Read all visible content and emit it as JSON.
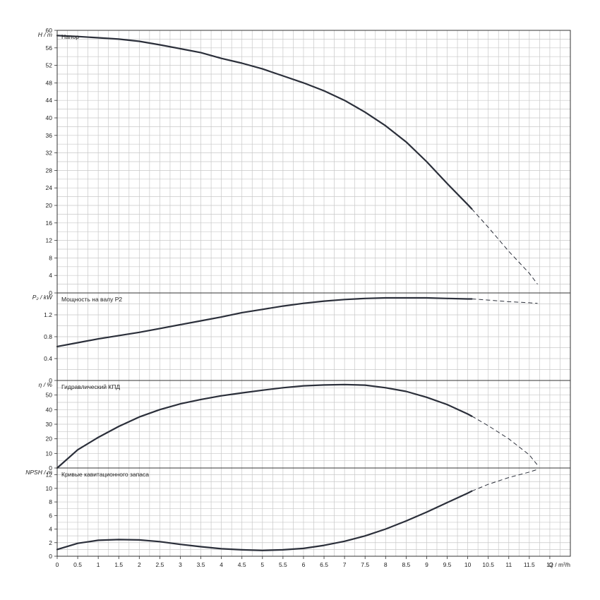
{
  "colors": {
    "curve": "#2b2f3a",
    "grid": "#c8c8c8",
    "frame": "#333333",
    "background": "#ffffff"
  },
  "chart_data": {
    "type": "line",
    "shared_x": {
      "label": "Q / m³/h",
      "range": [
        0,
        12.5
      ],
      "ticks": [
        "0",
        "0.5",
        "1",
        "1.5",
        "2",
        "2.5",
        "3",
        "3.5",
        "4",
        "4.5",
        "5",
        "5.5",
        "6",
        "6.5",
        "7",
        "7.5",
        "8",
        "8.5",
        "9",
        "9.5",
        "10",
        "10.5",
        "11",
        "11.5",
        "12"
      ],
      "grid": true
    },
    "panels": [
      {
        "id": "head",
        "title": "Напор",
        "ylabel": "H / m",
        "ylim": [
          0,
          60
        ],
        "yticks": [
          "0",
          "4",
          "8",
          "12",
          "16",
          "20",
          "24",
          "28",
          "32",
          "36",
          "40",
          "44",
          "48",
          "52",
          "56",
          "60"
        ],
        "x": [
          0,
          0.5,
          1,
          1.5,
          2,
          2.5,
          3,
          3.5,
          4,
          4.5,
          5,
          5.5,
          6,
          6.5,
          7,
          7.5,
          8,
          8.5,
          9,
          9.5,
          10,
          10.1
        ],
        "y": [
          58.8,
          58.6,
          58.3,
          58.0,
          57.5,
          56.7,
          55.8,
          54.9,
          53.6,
          52.5,
          51.2,
          49.6,
          48.0,
          46.2,
          44.0,
          41.3,
          38.2,
          34.5,
          30.0,
          25.0,
          20.2,
          19.2
        ],
        "x_dashed": [
          10.1,
          10.5,
          11,
          11.5,
          11.7
        ],
        "y_dashed": [
          19.2,
          15.0,
          9.5,
          4.5,
          2.0
        ]
      },
      {
        "id": "power",
        "title": "Мощность на валу P2",
        "ylabel": "P₂ / kW",
        "ylim": [
          0,
          1.6
        ],
        "yticks": [
          "0",
          "0.4",
          "0.8",
          "1.2"
        ],
        "x": [
          0,
          0.5,
          1,
          1.5,
          2,
          2.5,
          3,
          3.5,
          4,
          4.5,
          5,
          5.5,
          6,
          6.5,
          7,
          7.5,
          8,
          8.5,
          9,
          9.5,
          10,
          10.1
        ],
        "y": [
          0.62,
          0.69,
          0.76,
          0.82,
          0.88,
          0.95,
          1.02,
          1.09,
          1.16,
          1.24,
          1.3,
          1.36,
          1.41,
          1.45,
          1.48,
          1.5,
          1.51,
          1.51,
          1.51,
          1.5,
          1.49,
          1.49
        ],
        "x_dashed": [
          10.1,
          10.5,
          11,
          11.5,
          11.7
        ],
        "y_dashed": [
          1.49,
          1.47,
          1.44,
          1.42,
          1.41
        ]
      },
      {
        "id": "efficiency",
        "title": "Гидравлический КПД",
        "ylabel": "η / %",
        "ylim": [
          0,
          60
        ],
        "yticks": [
          "0",
          "10",
          "20",
          "30",
          "40",
          "50"
        ],
        "x": [
          0,
          0.5,
          1,
          1.5,
          2,
          2.5,
          3,
          3.5,
          4,
          4.5,
          5,
          5.5,
          6,
          6.5,
          7,
          7.5,
          8,
          8.5,
          9,
          9.5,
          10,
          10.1
        ],
        "y": [
          0,
          12.5,
          21.0,
          28.5,
          35.0,
          40.0,
          44.0,
          47.0,
          49.5,
          51.5,
          53.3,
          55.0,
          56.3,
          56.9,
          57.2,
          56.8,
          55.0,
          52.5,
          48.5,
          43.5,
          37.0,
          35.5
        ],
        "x_dashed": [
          10.1,
          10.5,
          11,
          11.5,
          11.7
        ],
        "y_dashed": [
          35.5,
          29.0,
          20.0,
          9.0,
          2.0
        ]
      },
      {
        "id": "npsh",
        "title": "Кривые кавитационного запаса",
        "ylabel": "NPSH / m",
        "ylim": [
          0,
          13
        ],
        "yticks": [
          "0",
          "2",
          "4",
          "6",
          "8",
          "10",
          "12"
        ],
        "x": [
          0,
          0.5,
          1,
          1.5,
          2,
          2.5,
          3,
          3.5,
          4,
          4.5,
          5,
          5.5,
          6,
          6.5,
          7,
          7.5,
          8,
          8.5,
          9,
          9.5,
          10,
          10.1
        ],
        "y": [
          1.0,
          1.9,
          2.35,
          2.45,
          2.4,
          2.15,
          1.75,
          1.4,
          1.1,
          0.95,
          0.85,
          0.95,
          1.15,
          1.6,
          2.2,
          3.0,
          4.0,
          5.2,
          6.5,
          7.9,
          9.3,
          9.6
        ],
        "x_dashed": [
          10.1,
          10.5,
          11,
          11.5,
          11.7
        ],
        "y_dashed": [
          9.6,
          10.6,
          11.6,
          12.4,
          12.8
        ]
      }
    ]
  }
}
